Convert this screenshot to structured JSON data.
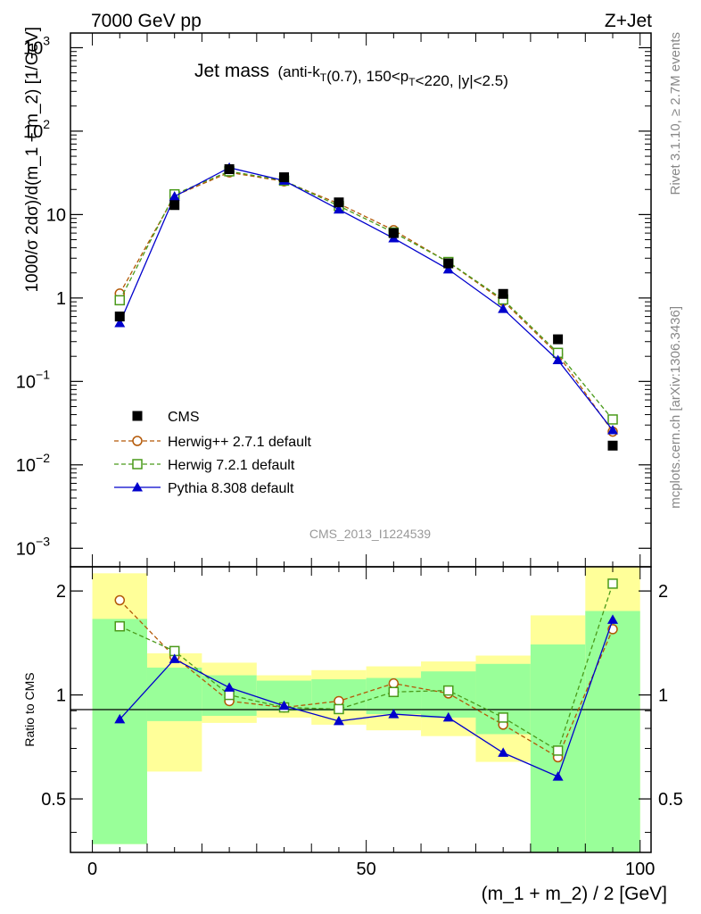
{
  "header": {
    "left": "7000 GeV pp",
    "right": "Z+Jet"
  },
  "side_labels": {
    "rivet": "Rivet 3.1.10, ≥ 2.7M events",
    "mcplots": "mcplots.cern.ch [arXiv:1306.3436]"
  },
  "chart_data": [
    {
      "type": "line",
      "title_main": "Jet mass",
      "title_sub": "(anti-k_T(0.7), 150<p_T<220, |y|<2.5)",
      "watermark": "CMS_2013_I1224539",
      "ylabel": "1000/σ 2dσ)/d(m_1 + m_2) [1/GeV]",
      "yscale": "log",
      "ylim": [
        0.0006,
        1500
      ],
      "xlim": [
        -4,
        102
      ],
      "yticks": [
        {
          "v": 0.001,
          "base": "10",
          "exp": "−3"
        },
        {
          "v": 0.01,
          "base": "10",
          "exp": "−2"
        },
        {
          "v": 0.1,
          "base": "10",
          "exp": "−1"
        },
        {
          "v": 1,
          "base": "1",
          "exp": ""
        },
        {
          "v": 10,
          "base": "10",
          "exp": ""
        },
        {
          "v": 100,
          "base": "10",
          "exp": "2"
        },
        {
          "v": 1000,
          "base": "10",
          "exp": "3"
        }
      ],
      "x": [
        5,
        15,
        25,
        35,
        45,
        55,
        65,
        75,
        85,
        95
      ],
      "series": [
        {
          "name": "CMS",
          "marker": "square-filled",
          "color": "#000000",
          "dash": "none",
          "values": [
            0.6,
            13,
            35,
            28,
            14,
            6,
            2.6,
            1.12,
            0.32,
            0.017
          ]
        },
        {
          "name": "Herwig++ 2.7.1 default",
          "marker": "circle-open",
          "color": "#b35806",
          "dash": "dashed",
          "values": [
            1.13,
            16.8,
            32,
            25,
            13.5,
            6.5,
            2.68,
            0.92,
            0.21,
            0.025
          ]
        },
        {
          "name": "Herwig 7.2.1 default",
          "marker": "square-open",
          "color": "#4a9a1a",
          "dash": "dashed",
          "values": [
            0.94,
            17.5,
            33,
            25.5,
            12.7,
            6.1,
            2.7,
            0.96,
            0.22,
            0.035
          ]
        },
        {
          "name": "Pythia 8.308 default",
          "marker": "triangle-filled",
          "color": "#0000cc",
          "dash": "solid",
          "values": [
            0.5,
            16.5,
            36.5,
            25.5,
            11.5,
            5.2,
            2.2,
            0.74,
            0.18,
            0.026
          ]
        }
      ]
    },
    {
      "type": "line",
      "ylabel": "Ratio to CMS",
      "xlabel": "(m_1 + m_2) / 2 [GeV]",
      "xlim": [
        -4,
        102
      ],
      "ylim": [
        0.35,
        2.35
      ],
      "xticks": [
        0,
        50,
        100
      ],
      "yticks": [
        0.5,
        1,
        2
      ],
      "reference_line": 1,
      "band_bins": [
        [
          0,
          10
        ],
        [
          10,
          20
        ],
        [
          20,
          30
        ],
        [
          30,
          40
        ],
        [
          40,
          50
        ],
        [
          50,
          60
        ],
        [
          60,
          70
        ],
        [
          70,
          80
        ],
        [
          80,
          90
        ],
        [
          90,
          100
        ]
      ],
      "band_yellow": [
        [
          0.37,
          2.25
        ],
        [
          0.6,
          1.32
        ],
        [
          0.83,
          1.24
        ],
        [
          0.86,
          1.14
        ],
        [
          0.82,
          1.18
        ],
        [
          0.79,
          1.21
        ],
        [
          0.76,
          1.25
        ],
        [
          0.64,
          1.3
        ],
        [
          0.35,
          1.7
        ],
        [
          0.35,
          2.35
        ]
      ],
      "band_green": [
        [
          0.37,
          1.66
        ],
        [
          0.84,
          1.2
        ],
        [
          0.87,
          1.14
        ],
        [
          0.9,
          1.1
        ],
        [
          0.9,
          1.11
        ],
        [
          0.88,
          1.12
        ],
        [
          0.86,
          1.17
        ],
        [
          0.77,
          1.23
        ],
        [
          0.35,
          1.4
        ],
        [
          0.35,
          1.75
        ]
      ],
      "series": [
        {
          "name": "Herwig++ 2.7.1 default",
          "color": "#b35806",
          "marker": "circle-open",
          "dash": "dashed",
          "values": [
            1.88,
            1.29,
            0.96,
            0.92,
            0.96,
            1.08,
            1.01,
            0.82,
            0.66,
            1.55
          ]
        },
        {
          "name": "Herwig 7.2.1 default",
          "color": "#4a9a1a",
          "marker": "square-open",
          "dash": "dashed",
          "values": [
            1.58,
            1.34,
            1.0,
            0.92,
            0.91,
            1.02,
            1.03,
            0.86,
            0.69,
            2.1
          ]
        },
        {
          "name": "Pythia 8.308 default",
          "color": "#0000cc",
          "marker": "triangle-filled",
          "dash": "solid",
          "values": [
            0.85,
            1.27,
            1.05,
            0.93,
            0.84,
            0.88,
            0.86,
            0.68,
            0.58,
            1.65
          ]
        }
      ]
    }
  ]
}
